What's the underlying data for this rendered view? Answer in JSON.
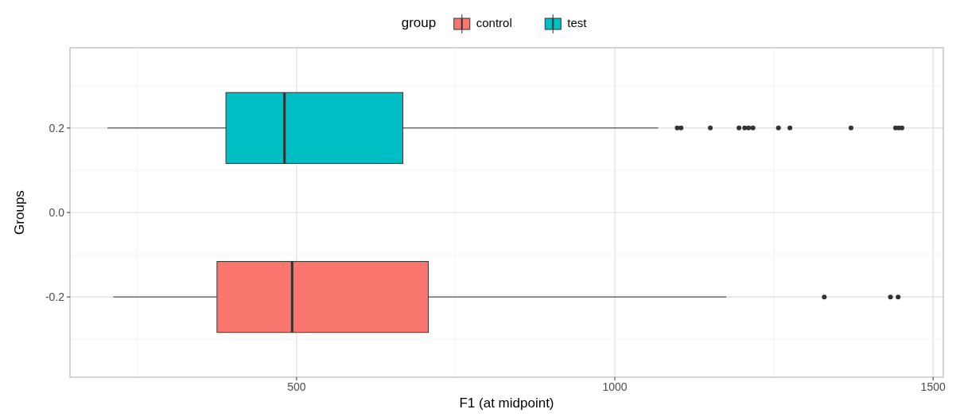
{
  "chart_data": {
    "type": "box",
    "orientation": "horizontal",
    "xlabel": "F1 (at midpoint)",
    "ylabel": "Groups",
    "legend_title": "group",
    "legend": "top",
    "grid": true,
    "xlim": [
      144,
      1516
    ],
    "xticks": [
      500,
      1000,
      1500
    ],
    "categories": [
      "0.2",
      "0.0",
      "-0.2"
    ],
    "series": [
      {
        "name": "control",
        "color": "#f8766d",
        "boxes": [
          null,
          null,
          {
            "low": 212,
            "q1": 375,
            "median": 493,
            "q3": 707,
            "high": 1175,
            "outliers": [
              1329,
              1433,
              1445
            ]
          }
        ]
      },
      {
        "name": "test",
        "color": "#00bfc4",
        "boxes": [
          {
            "low": 203,
            "q1": 389,
            "median": 481,
            "q3": 667,
            "high": 1068,
            "outliers": [
              1098,
              1104,
              1150,
              1195,
              1204,
              1210,
              1217,
              1257,
              1275,
              1371,
              1441,
              1446,
              1451
            ]
          },
          null,
          null
        ]
      }
    ]
  }
}
